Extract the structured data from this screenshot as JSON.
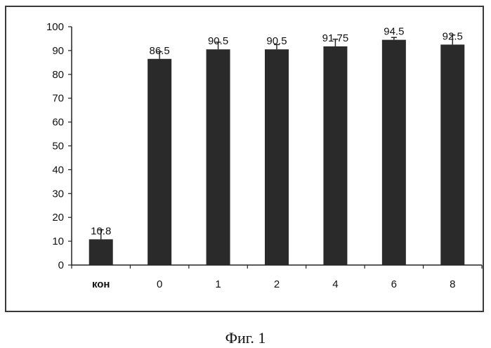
{
  "caption": "Фиг. 1",
  "colors": {
    "bar": "#2a2a2a",
    "axis": "#222222",
    "text": "#111111"
  },
  "chart_data": {
    "type": "bar",
    "categories": [
      "кон",
      "0",
      "1",
      "2",
      "4",
      "6",
      "8"
    ],
    "values": [
      10.8,
      86.5,
      90.5,
      90.5,
      91.75,
      94.5,
      92.5
    ],
    "data_labels": [
      "10.8",
      "86.5",
      "90.5",
      "90.5",
      "91.75",
      "94.5",
      "92.5"
    ],
    "error_bars": [
      4,
      3,
      3,
      2,
      3,
      1,
      4
    ],
    "yticks": [
      0,
      10,
      20,
      30,
      40,
      50,
      60,
      70,
      80,
      90,
      100
    ],
    "ylim": [
      0,
      100
    ],
    "title": "",
    "xlabel": "",
    "ylabel": "",
    "grid": false,
    "legend": "none"
  }
}
